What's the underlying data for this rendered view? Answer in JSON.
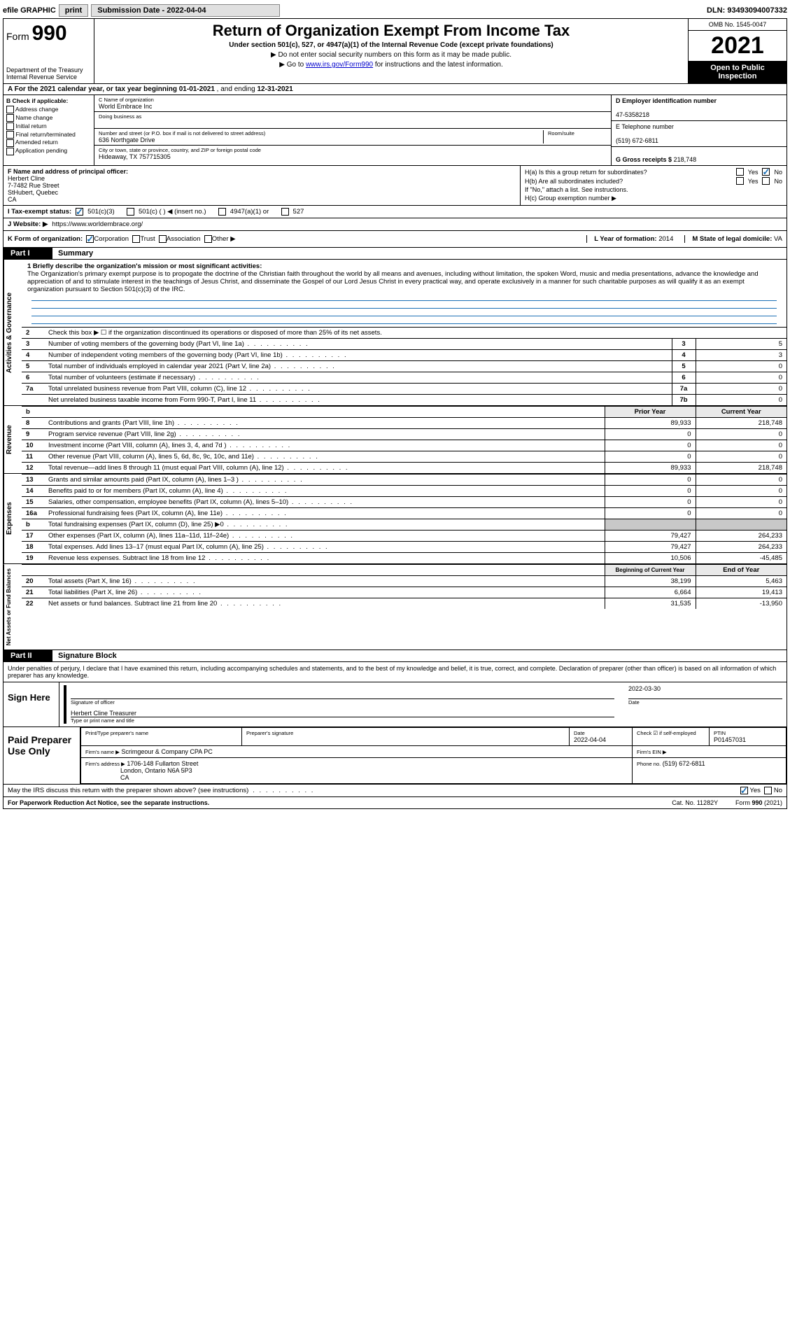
{
  "topbar": {
    "efile": "efile GRAPHIC",
    "printBtn": "print",
    "subLabel": "Submission Date - 2022-04-04",
    "dln": "DLN: 93493094007332"
  },
  "header": {
    "form": "Form",
    "formNum": "990",
    "dept": "Department of the Treasury Internal Revenue Service",
    "title": "Return of Organization Exempt From Income Tax",
    "sub": "Under section 501(c), 527, or 4947(a)(1) of the Internal Revenue Code (except private foundations)",
    "sub2a": "▶ Do not enter social security numbers on this form as it may be made public.",
    "sub2b": "▶ Go to ",
    "linkText": "www.irs.gov/Form990",
    "sub2c": " for instructions and the latest information.",
    "omb": "OMB No. 1545-0047",
    "year": "2021",
    "inspect": "Open to Public Inspection"
  },
  "rowA": {
    "label": "A   For the 2021 calendar year, or tax year beginning ",
    "begin": "01-01-2021",
    "mid": " , and ending ",
    "end": "12-31-2021"
  },
  "colB": {
    "label": "B Check if applicable:",
    "items": [
      "Address change",
      "Name change",
      "Initial return",
      "Final return/terminated",
      "Amended return",
      "Application pending"
    ]
  },
  "colC": {
    "nameLabel": "C Name of organization",
    "name": "World Embrace Inc",
    "dba": "Doing business as",
    "addrLabel": "Number and street (or P.O. box if mail is not delivered to street address)",
    "addr": "636 Northgate Drive",
    "roomLabel": "Room/suite",
    "cityLabel": "City or town, state or province, country, and ZIP or foreign postal code",
    "city": "Hideaway, TX  757715305"
  },
  "colD": {
    "dLabel": "D Employer identification number",
    "dVal": "47-5358218",
    "eLabel": "E Telephone number",
    "eVal": "(519) 672-6811",
    "gLabel": "G Gross receipts $",
    "gVal": "218,748"
  },
  "rowF": {
    "fLabel": "F  Name and address of principal officer:",
    "fName": "Herbert Cline",
    "fAddr1": "7-7482 Rue Street",
    "fAddr2": "StHubert, Quebec",
    "fAddr3": "CA"
  },
  "rowH": {
    "ha": "H(a)  Is this a group return for subordinates?",
    "hb": "H(b)  Are all subordinates included?",
    "hbNote": "If \"No,\" attach a list. See instructions.",
    "hc": "H(c)  Group exemption number ▶",
    "yes": "Yes",
    "no": "No"
  },
  "rowI": {
    "label": "I    Tax-exempt status:",
    "opts": [
      "501(c)(3)",
      "501(c) (  ) ◀ (insert no.)",
      "4947(a)(1) or",
      "527"
    ]
  },
  "rowJ": {
    "label": "J   Website: ▶",
    "val": "https://www.worldembrace.org/"
  },
  "rowK": {
    "label": "K Form of organization:",
    "opts": [
      "Corporation",
      "Trust",
      "Association",
      "Other ▶"
    ],
    "lLabel": "L Year of formation:",
    "lVal": "2014",
    "mLabel": "M State of legal domicile:",
    "mVal": "VA"
  },
  "part1": {
    "part": "Part I",
    "title": "Summary"
  },
  "mission": {
    "label": "1   Briefly describe the organization's mission or most significant activities:",
    "text": "The Organization's primary exempt purpose is to propogate the doctrine of the Christian faith throughout the world by all means and avenues, including without limitation, the spoken Word, music and media presentations, advance the knowledge and appreciation of and to stimulate interest in the teachings of Jesus Christ, and disseminate the Gospel of our Lord Jesus Christ in every practical way, and operate exclusively in a manner for such charitable purposes as will qualify it as an exempt organization pursuant to Section 501(c)(3) of the IRC."
  },
  "govLines": [
    {
      "n": "2",
      "desc": "Check this box ▶ ☐ if the organization discontinued its operations or disposed of more than 25% of its net assets.",
      "ref": "",
      "val": ""
    },
    {
      "n": "3",
      "desc": "Number of voting members of the governing body (Part VI, line 1a)",
      "ref": "3",
      "val": "5"
    },
    {
      "n": "4",
      "desc": "Number of independent voting members of the governing body (Part VI, line 1b)",
      "ref": "4",
      "val": "3"
    },
    {
      "n": "5",
      "desc": "Total number of individuals employed in calendar year 2021 (Part V, line 2a)",
      "ref": "5",
      "val": "0"
    },
    {
      "n": "6",
      "desc": "Total number of volunteers (estimate if necessary)",
      "ref": "6",
      "val": "0"
    },
    {
      "n": "7a",
      "desc": "Total unrelated business revenue from Part VIII, column (C), line 12",
      "ref": "7a",
      "val": "0"
    },
    {
      "n": "",
      "desc": "Net unrelated business taxable income from Form 990-T, Part I, line 11",
      "ref": "7b",
      "val": "0"
    }
  ],
  "revenueHdr": {
    "n": "b",
    "prior": "Prior Year",
    "curr": "Current Year"
  },
  "revenueSide": "Revenue",
  "revenueLines": [
    {
      "n": "8",
      "desc": "Contributions and grants (Part VIII, line 1h)",
      "prior": "89,933",
      "curr": "218,748"
    },
    {
      "n": "9",
      "desc": "Program service revenue (Part VIII, line 2g)",
      "prior": "0",
      "curr": "0"
    },
    {
      "n": "10",
      "desc": "Investment income (Part VIII, column (A), lines 3, 4, and 7d )",
      "prior": "0",
      "curr": "0"
    },
    {
      "n": "11",
      "desc": "Other revenue (Part VIII, column (A), lines 5, 6d, 8c, 9c, 10c, and 11e)",
      "prior": "0",
      "curr": "0"
    },
    {
      "n": "12",
      "desc": "Total revenue—add lines 8 through 11 (must equal Part VIII, column (A), line 12)",
      "prior": "89,933",
      "curr": "218,748"
    }
  ],
  "expenseSide": "Expenses",
  "expenseLines": [
    {
      "n": "13",
      "desc": "Grants and similar amounts paid (Part IX, column (A), lines 1–3 )",
      "prior": "0",
      "curr": "0"
    },
    {
      "n": "14",
      "desc": "Benefits paid to or for members (Part IX, column (A), line 4)",
      "prior": "0",
      "curr": "0"
    },
    {
      "n": "15",
      "desc": "Salaries, other compensation, employee benefits (Part IX, column (A), lines 5–10)",
      "prior": "0",
      "curr": "0"
    },
    {
      "n": "16a",
      "desc": "Professional fundraising fees (Part IX, column (A), line 11e)",
      "prior": "0",
      "curr": "0"
    },
    {
      "n": "b",
      "desc": "Total fundraising expenses (Part IX, column (D), line 25) ▶0",
      "prior": "shade",
      "curr": "shade"
    },
    {
      "n": "17",
      "desc": "Other expenses (Part IX, column (A), lines 11a–11d, 11f–24e)",
      "prior": "79,427",
      "curr": "264,233"
    },
    {
      "n": "18",
      "desc": "Total expenses. Add lines 13–17 (must equal Part IX, column (A), line 25)",
      "prior": "79,427",
      "curr": "264,233"
    },
    {
      "n": "19",
      "desc": "Revenue less expenses. Subtract line 18 from line 12",
      "prior": "10,506",
      "curr": "-45,485"
    }
  ],
  "netSide": "Net Assets or Fund Balances",
  "netHdr": {
    "prior": "Beginning of Current Year",
    "curr": "End of Year"
  },
  "netLines": [
    {
      "n": "20",
      "desc": "Total assets (Part X, line 16)",
      "prior": "38,199",
      "curr": "5,463"
    },
    {
      "n": "21",
      "desc": "Total liabilities (Part X, line 26)",
      "prior": "6,664",
      "curr": "19,413"
    },
    {
      "n": "22",
      "desc": "Net assets or fund balances. Subtract line 21 from line 20",
      "prior": "31,535",
      "curr": "-13,950"
    }
  ],
  "part2": {
    "part": "Part II",
    "title": "Signature Block"
  },
  "sigDecl": "Under penalties of perjury, I declare that I have examined this return, including accompanying schedules and statements, and to the best of my knowledge and belief, it is true, correct, and complete. Declaration of preparer (other than officer) is based on all information of which preparer has any knowledge.",
  "sign": {
    "left": "Sign Here",
    "sigOfficer": "Signature of officer",
    "date": "2022-03-30",
    "dateLabel": "Date",
    "name": "Herbert Cline  Treasurer",
    "nameLabel": "Type or print name and title"
  },
  "prep": {
    "left": "Paid Preparer Use Only",
    "printLabel": "Print/Type preparer's name",
    "sigLabel": "Preparer's signature",
    "dateLabel": "Date",
    "date": "2022-04-04",
    "checkLabel": "Check ☑ if self-employed",
    "ptinLabel": "PTIN",
    "ptin": "P01457031",
    "firmNameLabel": "Firm's name   ▶",
    "firmName": "Scrimgeour & Company CPA PC",
    "einLabel": "Firm's EIN ▶",
    "firmAddrLabel": "Firm's address ▶",
    "firmAddr1": "1706-148 Fullarton Street",
    "firmAddr2": "London, Ontario  N6A 5P3",
    "firmAddr3": "CA",
    "phoneLabel": "Phone no.",
    "phone": "(519) 672-6811"
  },
  "discuss": {
    "q": "May the IRS discuss this return with the preparer shown above? (see instructions)",
    "yes": "Yes",
    "no": "No"
  },
  "footer": {
    "left": "For Paperwork Reduction Act Notice, see the separate instructions.",
    "cat": "Cat. No. 11282Y",
    "form": "Form 990 (2021)"
  },
  "govSide": "Activities & Governance",
  "colors": {
    "link": "#0000cc",
    "check": "#1a6fb5",
    "shade": "#c8c8c8"
  }
}
